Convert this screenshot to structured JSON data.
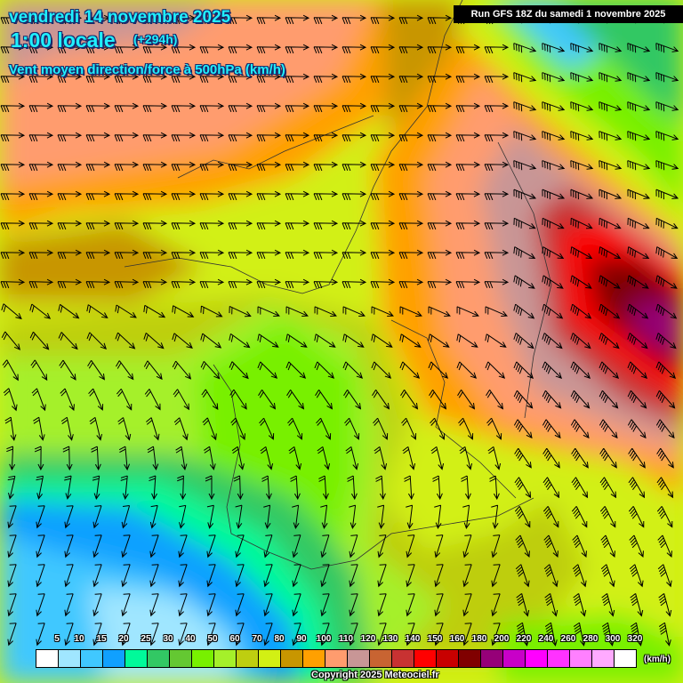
{
  "header": {
    "date": "vendredi 14 novembre 2025",
    "hour": "1:00 locale",
    "offset": "(+294h)",
    "parameter": "Vent moyen direction/force à 500hPa (km/h)",
    "run": "Run GFS 18Z du samedi 1 novembre 2025"
  },
  "legend": {
    "unit": "(km/h)",
    "labels": [
      "5",
      "10",
      "15",
      "20",
      "25",
      "30",
      "40",
      "50",
      "60",
      "70",
      "80",
      "90",
      "100",
      "110",
      "120",
      "130",
      "140",
      "150",
      "160",
      "180",
      "200",
      "220",
      "240",
      "260",
      "280",
      "300",
      "320"
    ],
    "colors": [
      "#ffffff",
      "#a0e6ff",
      "#40c8ff",
      "#10a0ff",
      "#00fa9a",
      "#32c864",
      "#64c832",
      "#78f000",
      "#a5f02a",
      "#bece10",
      "#d2f014",
      "#c89600",
      "#ffa000",
      "#ff9c6e",
      "#c89696",
      "#c86432",
      "#c83232",
      "#ff0000",
      "#c80000",
      "#800000",
      "#960078",
      "#c800c8",
      "#ff00ff",
      "#ff32ff",
      "#ff80ff",
      "#ffaaff",
      "#ffffff"
    ]
  },
  "footer": {
    "copyright": "Copyright 2025 Meteociel.fr"
  }
}
